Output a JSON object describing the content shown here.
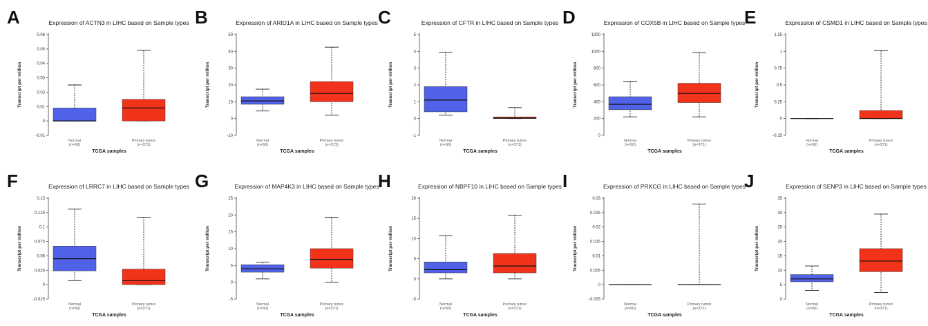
{
  "colors": {
    "normal": "#4f62e8",
    "tumor": "#f0331a",
    "median": "#111111",
    "axis": "#444444"
  },
  "chart_data": [
    {
      "letter": "A",
      "type": "box",
      "title": "Expression of ACTN3 in LIHC based on Sample types",
      "ylabel": "Transcript per million",
      "xlabel": "TCGA samples",
      "ylim": [
        -0.01,
        0.06
      ],
      "yticks": [
        "-0.01",
        "0",
        "0.01",
        "0.02",
        "0.03",
        "0.04",
        "0.05",
        "0.06"
      ],
      "groups": [
        {
          "name": "Normal",
          "n": "(n=50)",
          "min": 0,
          "q1": 0,
          "median": 0,
          "q3": 0.009,
          "max": 0.025
        },
        {
          "name": "Primary tumor",
          "n": "(n=371)",
          "min": 0,
          "q1": 0,
          "median": 0.009,
          "q3": 0.015,
          "max": 0.049
        }
      ]
    },
    {
      "letter": "B",
      "type": "box",
      "title": "Expression of ARID1A in LIHC based on Sample types",
      "ylabel": "Transcript per million",
      "xlabel": "TCGA samples",
      "ylim": [
        -10,
        50
      ],
      "yticks": [
        "-10",
        "0",
        "10",
        "20",
        "30",
        "40",
        "50"
      ],
      "groups": [
        {
          "name": "Normal",
          "n": "(n=50)",
          "min": 4.5,
          "q1": 8.5,
          "median": 10.5,
          "q3": 13,
          "max": 17.5
        },
        {
          "name": "Primary tumor",
          "n": "(n=371)",
          "min": 2,
          "q1": 10,
          "median": 15,
          "q3": 22,
          "max": 42.5
        }
      ]
    },
    {
      "letter": "C",
      "type": "box",
      "title": "Expression of CFTR in LIHC based on Sample types",
      "ylabel": "Transcript per million",
      "xlabel": "TCGA samples",
      "ylim": [
        -1,
        5
      ],
      "yticks": [
        "-1",
        "0",
        "1",
        "2",
        "3",
        "4",
        "5"
      ],
      "groups": [
        {
          "name": "Normal",
          "n": "(n=50)",
          "min": 0.2,
          "q1": 0.4,
          "median": 1.1,
          "q3": 1.9,
          "max": 3.95
        },
        {
          "name": "Primary tumor",
          "n": "(n=371)",
          "min": 0,
          "q1": 0,
          "median": 0.03,
          "q3": 0.1,
          "max": 0.65
        }
      ]
    },
    {
      "letter": "D",
      "type": "box",
      "title": "Expression of COX5B in LIHC based on Sample types",
      "ylabel": "Transcript per million",
      "xlabel": "TCGA samples",
      "ylim": [
        0,
        1200
      ],
      "yticks": [
        "0",
        "200",
        "400",
        "600",
        "800",
        "1000",
        "1200"
      ],
      "groups": [
        {
          "name": "Normal",
          "n": "(n=50)",
          "min": 220,
          "q1": 305,
          "median": 370,
          "q3": 460,
          "max": 640
        },
        {
          "name": "Primary tumor",
          "n": "(n=371)",
          "min": 220,
          "q1": 390,
          "median": 500,
          "q3": 620,
          "max": 985
        }
      ]
    },
    {
      "letter": "E",
      "type": "box",
      "title": "Expression of CSMD1 in LIHC based on Sample types",
      "ylabel": "Transcript per million",
      "xlabel": "TCGA samples",
      "ylim": [
        -0.25,
        1.25
      ],
      "yticks": [
        "-0.25",
        "0",
        "0.25",
        "0.5",
        "0.75",
        "1",
        "1.25"
      ],
      "groups": [
        {
          "name": "Normal",
          "n": "(n=50)",
          "min": 0,
          "q1": 0,
          "median": 0,
          "q3": 0,
          "max": 0
        },
        {
          "name": "Primary tumor",
          "n": "(n=371)",
          "min": 0,
          "q1": 0,
          "median": 0,
          "q3": 0.12,
          "max": 1.01
        }
      ]
    },
    {
      "letter": "F",
      "type": "box",
      "title": "Expression of LRRC7 in LIHC based on Sample types",
      "ylabel": "Transcript per million",
      "xlabel": "TCGA samples",
      "ylim": [
        -0.025,
        0.15
      ],
      "yticks": [
        "-0.025",
        "0",
        "0.025",
        "0.05",
        "0.075",
        "0.1",
        "0.125",
        "0.15"
      ],
      "groups": [
        {
          "name": "Normal",
          "n": "(n=50)",
          "min": 0.007,
          "q1": 0.024,
          "median": 0.045,
          "q3": 0.067,
          "max": 0.131
        },
        {
          "name": "Primary tumor",
          "n": "(n=371)",
          "min": 0,
          "q1": 0,
          "median": 0.007,
          "q3": 0.027,
          "max": 0.117
        }
      ]
    },
    {
      "letter": "G",
      "type": "box",
      "title": "Expression of MAP4K3 in LIHC based on Sample types",
      "ylabel": "Transcript per million",
      "xlabel": "TCGA samples",
      "ylim": [
        -5,
        25
      ],
      "yticks": [
        "-5",
        "0",
        "5",
        "10",
        "15",
        "20",
        "25"
      ],
      "groups": [
        {
          "name": "Normal",
          "n": "(n=50)",
          "min": 1,
          "q1": 3,
          "median": 4,
          "q3": 5.2,
          "max": 6
        },
        {
          "name": "Primary tumor",
          "n": "(n=371)",
          "min": 0,
          "q1": 4.2,
          "median": 6.8,
          "q3": 10,
          "max": 19.3
        }
      ]
    },
    {
      "letter": "H",
      "type": "box",
      "title": "Expression of NBPF10 in LIHC based on Sample types",
      "ylabel": "Transcript per million",
      "xlabel": "TCGA samples",
      "ylim": [
        -5,
        20
      ],
      "yticks": [
        "-5",
        "0",
        "5",
        "10",
        "15",
        "20"
      ],
      "groups": [
        {
          "name": "Normal",
          "n": "(n=50)",
          "min": 0,
          "q1": 1.5,
          "median": 2.3,
          "q3": 4.2,
          "max": 10.7
        },
        {
          "name": "Primary tumor",
          "n": "(n=371)",
          "min": 0,
          "q1": 1.5,
          "median": 3.2,
          "q3": 6.3,
          "max": 15.8
        }
      ]
    },
    {
      "letter": "I",
      "type": "box",
      "title": "Expression of PRKCG in LIHC based on Sample types",
      "ylabel": "Transcript per million",
      "xlabel": "TCGA samples",
      "ylim": [
        -0.005,
        0.03
      ],
      "yticks": [
        "-0.005",
        "0",
        "0.005",
        "0.01",
        "0.015",
        "0.02",
        "0.025",
        "0.03"
      ],
      "groups": [
        {
          "name": "Normal",
          "n": "(n=50)",
          "min": 0,
          "q1": 0,
          "median": 0,
          "q3": 0,
          "max": 0
        },
        {
          "name": "Primary tumor",
          "n": "(n=371)",
          "min": 0,
          "q1": 0,
          "median": 0,
          "q3": 0,
          "max": 0.028
        }
      ]
    },
    {
      "letter": "J",
      "type": "box",
      "title": "Expression of SENP3 in LIHC based on Sample types",
      "ylabel": "Transcript per million",
      "xlabel": "TCGA samples",
      "ylim": [
        0,
        35
      ],
      "yticks": [
        "0",
        "5",
        "10",
        "15",
        "20",
        "25",
        "30",
        "35"
      ],
      "groups": [
        {
          "name": "Normal",
          "n": "(n=50)",
          "min": 3,
          "q1": 6,
          "median": 7,
          "q3": 8.5,
          "max": 11.5
        },
        {
          "name": "Primary tumor",
          "n": "(n=371)",
          "min": 2.3,
          "q1": 9.5,
          "median": 13.2,
          "q3": 17.5,
          "max": 29.5
        }
      ]
    }
  ]
}
